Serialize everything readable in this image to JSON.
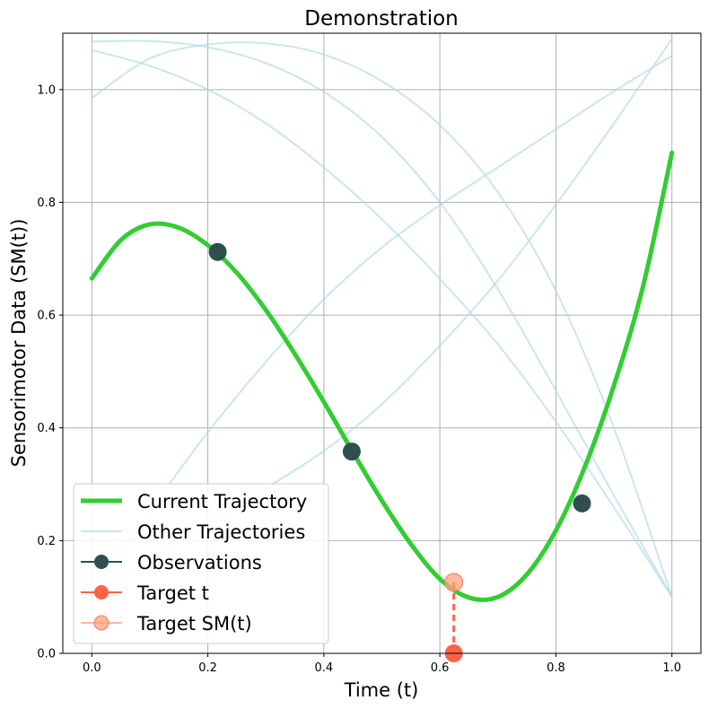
{
  "chart_data": {
    "type": "line",
    "title": "Demonstration",
    "xlabel": "Time (t)",
    "ylabel": "Sensorimotor Data (SM(t))",
    "xlim": [
      -0.05,
      1.05
    ],
    "ylim": [
      0,
      1.1
    ],
    "xticks": [
      0.0,
      0.2,
      0.4,
      0.6,
      0.8,
      1.0
    ],
    "yticks": [
      0.0,
      0.2,
      0.4,
      0.6,
      0.8,
      1.0
    ],
    "xtick_labels": [
      "0.0",
      "0.2",
      "0.4",
      "0.6",
      "0.8",
      "1.0"
    ],
    "ytick_labels": [
      "0.0",
      "0.2",
      "0.4",
      "0.6",
      "0.8",
      "1.0"
    ],
    "grid": true,
    "legend_position": "bottom-left",
    "colors": {
      "current": "#32cd32",
      "other": "#add8e6",
      "observations": "#2f4f4f",
      "target_t": "#ff6347",
      "target_sm": "#ffa07a",
      "grid": "#b0b0b0"
    },
    "series": [
      {
        "name": "Current Trajectory",
        "role": "current",
        "x": [
          0.0,
          0.05,
          0.1,
          0.15,
          0.2,
          0.25,
          0.3,
          0.35,
          0.4,
          0.45,
          0.5,
          0.55,
          0.6,
          0.65,
          0.7,
          0.75,
          0.8,
          0.85,
          0.9,
          0.95,
          1.0
        ],
        "y": [
          0.665,
          0.733,
          0.761,
          0.755,
          0.724,
          0.675,
          0.609,
          0.531,
          0.446,
          0.357,
          0.271,
          0.194,
          0.132,
          0.099,
          0.1,
          0.14,
          0.218,
          0.331,
          0.475,
          0.65,
          0.888
        ]
      },
      {
        "name": "Other Trajectories",
        "role": "other",
        "x": [
          0.0,
          0.1,
          0.2,
          0.3,
          0.4,
          0.5,
          0.6,
          0.7,
          0.8,
          0.9,
          1.0
        ],
        "y": [
          1.085,
          1.086,
          1.075,
          1.047,
          0.996,
          0.916,
          0.8,
          0.646,
          0.466,
          0.28,
          0.1
        ]
      },
      {
        "role": "other",
        "x": [
          0.0,
          0.1,
          0.2,
          0.3,
          0.4,
          0.5,
          0.6,
          0.7,
          0.8,
          0.9,
          1.0
        ],
        "y": [
          1.07,
          1.042,
          1.0,
          0.94,
          0.862,
          0.77,
          0.664,
          0.548,
          0.411,
          0.259,
          0.1
        ]
      },
      {
        "role": "other",
        "x": [
          0.0,
          0.1,
          0.2,
          0.3,
          0.4,
          0.5,
          0.6,
          0.7,
          0.8,
          0.9,
          1.0
        ],
        "y": [
          0.985,
          1.055,
          1.08,
          1.082,
          1.062,
          1.015,
          0.937,
          0.818,
          0.643,
          0.4,
          0.1
        ]
      },
      {
        "role": "other",
        "x": [
          0.0,
          0.1,
          0.2,
          0.3,
          0.4,
          0.5,
          0.6,
          0.7,
          0.8,
          0.9,
          1.0
        ],
        "y": [
          0.1,
          0.252,
          0.392,
          0.517,
          0.628,
          0.72,
          0.795,
          0.862,
          0.93,
          0.997,
          1.06
        ]
      },
      {
        "role": "other",
        "x": [
          0.0,
          0.1,
          0.2,
          0.3,
          0.4,
          0.5,
          0.6,
          0.7,
          0.8,
          0.9,
          1.0
        ],
        "y": [
          0.1,
          0.167,
          0.231,
          0.293,
          0.359,
          0.442,
          0.546,
          0.661,
          0.796,
          0.94,
          1.09
        ]
      }
    ],
    "observations": {
      "name": "Observations",
      "x": [
        0.217,
        0.448,
        0.845
      ],
      "y": [
        0.712,
        0.358,
        0.266
      ]
    },
    "target_t": {
      "name": "Target t",
      "x": 0.624,
      "y": 0.0
    },
    "target_sm": {
      "name": "Target SM(t)",
      "x": 0.624,
      "y": 0.126
    }
  }
}
